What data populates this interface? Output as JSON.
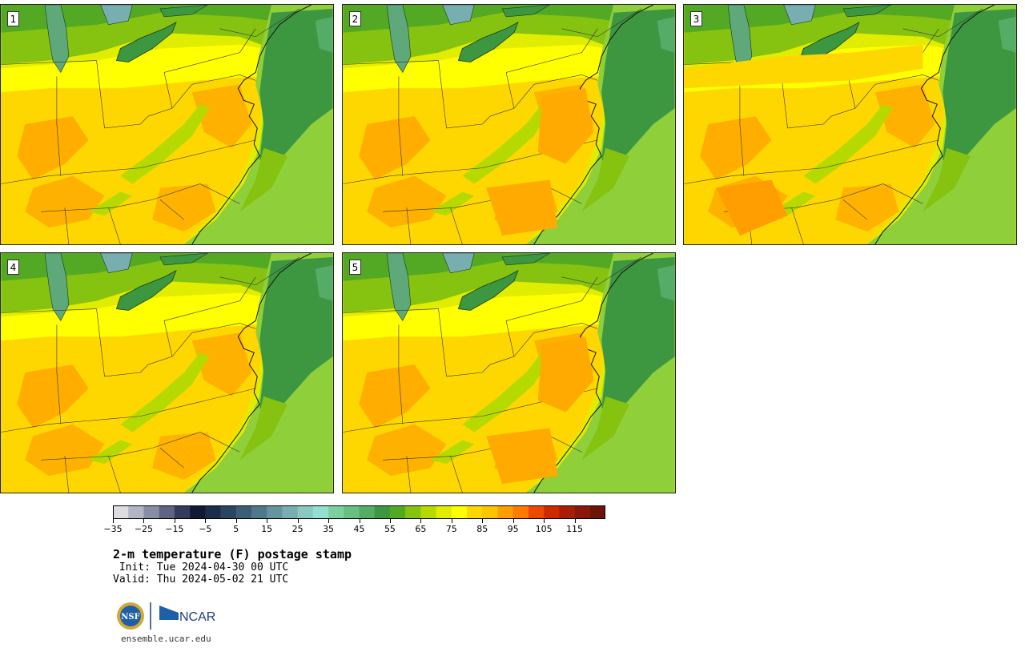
{
  "panels": [
    {
      "label": "1"
    },
    {
      "label": "2"
    },
    {
      "label": "3"
    },
    {
      "label": "4"
    },
    {
      "label": "5"
    }
  ],
  "colorbar": {
    "colors": [
      "#dcdde3",
      "#b3b5c4",
      "#8a8ea5",
      "#5e6481",
      "#343b5b",
      "#101a33",
      "#1a2e4a",
      "#2a4560",
      "#3b5e76",
      "#4f798a",
      "#64949e",
      "#78aeaf",
      "#8bc8c0",
      "#92e0d2",
      "#7ecfa0",
      "#68bf82",
      "#55ac67",
      "#3d9640",
      "#54a924",
      "#86c210",
      "#b6d900",
      "#e0ec00",
      "#ffff00",
      "#ffd700",
      "#ffc400",
      "#ff9e00",
      "#ff7a00",
      "#ec4a00",
      "#cd2a00",
      "#a81d05",
      "#8a180a",
      "#6e1309"
    ],
    "tick_labels": [
      "−35",
      "−25",
      "−15",
      "−5",
      "5",
      "15",
      "25",
      "35",
      "45",
      "55",
      "65",
      "75",
      "85",
      "95",
      "105",
      "115"
    ]
  },
  "title": "2-m temperature (F) postage stamp",
  "init": " Init: Tue 2024-04-30 00 UTC",
  "valid": "Valid: Thu 2024-05-02 21 UTC",
  "logos": {
    "left": "NSF",
    "right": "NCAR"
  },
  "site": "ensemble.ucar.edu",
  "colors": {
    "lake": "#5fa87a",
    "ocean_far": "#8ecf3a",
    "ocean_near": "#3d9640",
    "warm": "#ffd700",
    "warmer": "#ffaa00",
    "cool": "#b6d900"
  }
}
